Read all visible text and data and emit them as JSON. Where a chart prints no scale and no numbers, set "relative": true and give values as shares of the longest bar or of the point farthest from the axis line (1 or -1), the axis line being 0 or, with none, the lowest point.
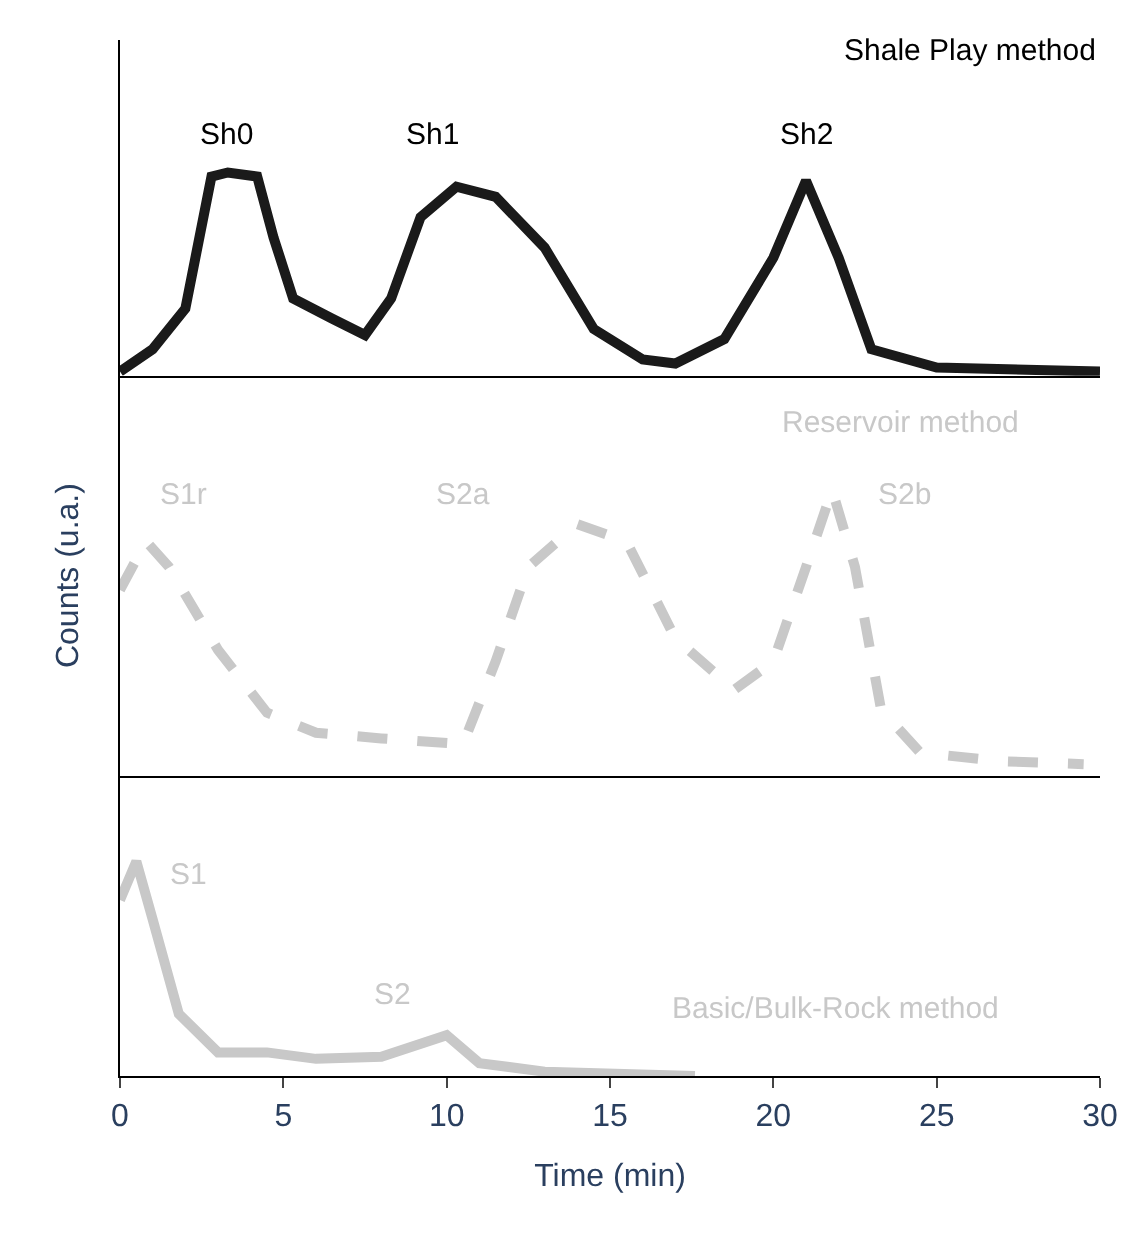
{
  "chart_data": [
    {
      "type": "line",
      "title": "Shale Play method",
      "relative": true,
      "tick_labels": false,
      "xlim": [
        0,
        30
      ],
      "grid": false,
      "series": [
        {
          "color": "#1a1a1a",
          "line_style": "solid",
          "x": [
            0,
            1,
            2,
            2.8,
            3.3,
            4.2,
            4.7,
            5.3,
            6.5,
            7.5,
            8.3,
            9.2,
            10.3,
            11.5,
            13,
            14.5,
            16,
            17,
            18.5,
            20,
            21,
            22,
            23,
            25,
            30
          ],
          "values": [
            0.02,
            0.13,
            0.33,
            0.98,
            1.0,
            0.98,
            0.68,
            0.38,
            0.28,
            0.2,
            0.38,
            0.78,
            0.93,
            0.88,
            0.63,
            0.23,
            0.08,
            0.06,
            0.18,
            0.58,
            0.96,
            0.58,
            0.13,
            0.04,
            0.02
          ]
        }
      ],
      "annotations": [
        "Sh0",
        "Sh1",
        "Sh2"
      ]
    },
    {
      "type": "line",
      "title": "Reservoir method",
      "ylabel": "Counts (u.a.)",
      "relative": true,
      "tick_labels": false,
      "xlim": [
        0,
        30
      ],
      "grid": false,
      "series": [
        {
          "color": "#c8c8c8",
          "line_style": "dashed",
          "x": [
            0,
            0.8,
            1.5,
            3,
            4.5,
            6,
            8,
            10.5,
            11.5,
            12.5,
            14,
            15.5,
            17,
            18.8,
            20,
            21,
            21.8,
            22.5,
            23.3,
            24.5,
            27,
            29.5
          ],
          "values": [
            0.65,
            0.82,
            0.73,
            0.44,
            0.22,
            0.15,
            0.13,
            0.11,
            0.4,
            0.73,
            0.88,
            0.82,
            0.48,
            0.3,
            0.4,
            0.73,
            1.0,
            0.73,
            0.23,
            0.08,
            0.05,
            0.04
          ]
        }
      ],
      "annotations": [
        "S1r",
        "S2a",
        "S2b"
      ]
    },
    {
      "type": "line",
      "title": "Basic/Bulk-Rock method",
      "xlabel": "Time (min)",
      "relative": true,
      "tick_labels": "x",
      "xlim": [
        0,
        30
      ],
      "xticks": [
        0,
        5,
        10,
        15,
        20,
        25,
        30
      ],
      "grid": false,
      "series": [
        {
          "color": "#c8c8c8",
          "line_style": "solid",
          "x": [
            0,
            0.5,
            1,
            1.8,
            3,
            4.5,
            6,
            8,
            10,
            11,
            13,
            17.6
          ],
          "values": [
            0.82,
            1.0,
            0.73,
            0.29,
            0.11,
            0.11,
            0.08,
            0.09,
            0.19,
            0.06,
            0.02,
            0.0
          ]
        }
      ],
      "annotations": [
        "S1",
        "S2"
      ]
    }
  ]
}
